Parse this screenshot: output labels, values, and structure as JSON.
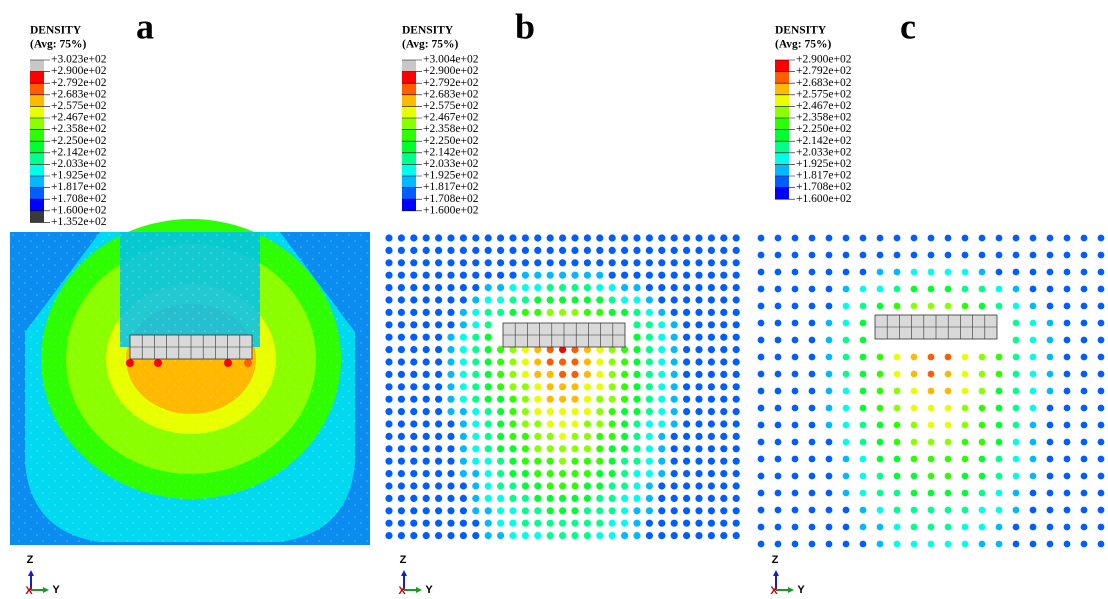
{
  "panels": [
    {
      "label": "a",
      "legend_title": "DENSITY",
      "legend_subtitle": "(Avg: 75%)",
      "legend_values": [
        "+3.023e+02",
        "+2.900e+02",
        "+2.792e+02",
        "+2.683e+02",
        "+2.575e+02",
        "+2.467e+02",
        "+2.358e+02",
        "+2.250e+02",
        "+2.142e+02",
        "+2.033e+02",
        "+1.925e+02",
        "+1.817e+02",
        "+1.708e+02",
        "+1.600e+02",
        "+1.352e+02"
      ],
      "axes": {
        "z": "Z",
        "y": "Y",
        "x": "X"
      }
    },
    {
      "label": "b",
      "legend_title": "DENSITY",
      "legend_subtitle": "(Avg: 75%)",
      "legend_values": [
        "+3.004e+02",
        "+2.900e+02",
        "+2.792e+02",
        "+2.683e+02",
        "+2.575e+02",
        "+2.467e+02",
        "+2.358e+02",
        "+2.250e+02",
        "+2.142e+02",
        "+2.033e+02",
        "+1.925e+02",
        "+1.817e+02",
        "+1.708e+02",
        "+1.600e+02"
      ],
      "axes": {
        "z": "Z",
        "y": "Y",
        "x": "X"
      }
    },
    {
      "label": "c",
      "legend_title": "DENSITY",
      "legend_subtitle": "(Avg: 75%)",
      "legend_values": [
        "+2.900e+02",
        "+2.792e+02",
        "+2.683e+02",
        "+2.575e+02",
        "+2.467e+02",
        "+2.358e+02",
        "+2.250e+02",
        "+2.142e+02",
        "+2.033e+02",
        "+1.925e+02",
        "+1.817e+02",
        "+1.708e+02",
        "+1.600e+02"
      ],
      "axes": {
        "z": "Z",
        "y": "Y",
        "x": "X"
      }
    }
  ]
}
